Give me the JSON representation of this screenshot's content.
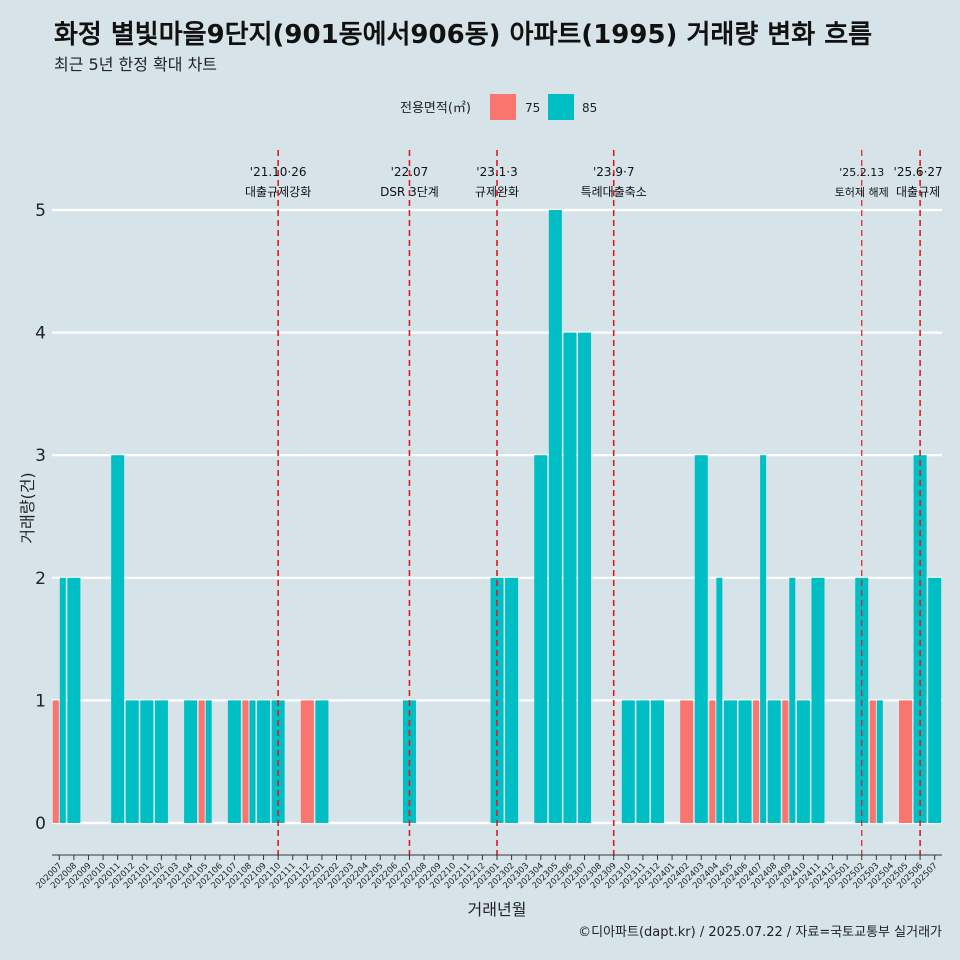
{
  "title": "화정 별빛마을9단지(901동에서906동) 아파트(1995) 거래량 변화 흐름",
  "subtitle": "최근 5년 한정 확대 차트",
  "caption": "©디아파트(dapt.kr) / 2025.07.22 / 자료=국토교통부 실거래가",
  "colors": {
    "background": "#d6e4ea",
    "series_75": "#f8766d",
    "series_85": "#00bfc4",
    "grid": "#ffffff",
    "event_line": "#e31a1c"
  },
  "chart_data": {
    "type": "bar",
    "stacked": "dodge",
    "xlabel": "거래년월",
    "ylabel": "거래량(건)",
    "ylim": [
      0,
      5
    ],
    "yticks": [
      "0",
      "1",
      "2",
      "3",
      "4",
      "5"
    ],
    "grid": true,
    "legend": {
      "title": "전용면적(㎡)",
      "position": "top",
      "entries": [
        "75",
        "85"
      ]
    },
    "categories": [
      "202007",
      "202008",
      "202009",
      "202010",
      "202011",
      "202012",
      "202101",
      "202102",
      "202103",
      "202104",
      "202105",
      "202106",
      "202107",
      "202108",
      "202109",
      "202110",
      "202111",
      "202112",
      "202201",
      "202202",
      "202203",
      "202204",
      "202205",
      "202206",
      "202207",
      "202208",
      "202209",
      "202210",
      "202211",
      "202212",
      "202301",
      "202302",
      "202303",
      "202304",
      "202305",
      "202306",
      "202307",
      "202308",
      "202309",
      "202310",
      "202311",
      "202312",
      "202401",
      "202402",
      "202403",
      "202404",
      "202405",
      "202406",
      "202407",
      "202408",
      "202409",
      "202410",
      "202411",
      "202412",
      "202501",
      "202502",
      "202503",
      "202504",
      "202505",
      "202506",
      "202507"
    ],
    "series": [
      {
        "name": "75",
        "values": [
          1,
          0,
          0,
          0,
          0,
          0,
          0,
          0,
          0,
          0,
          1,
          0,
          0,
          1,
          0,
          0,
          0,
          1,
          0,
          0,
          0,
          0,
          0,
          0,
          0,
          0,
          0,
          0,
          0,
          0,
          0,
          0,
          0,
          0,
          0,
          0,
          0,
          0,
          0,
          0,
          0,
          0,
          0,
          1,
          0,
          1,
          0,
          0,
          1,
          0,
          1,
          0,
          0,
          0,
          0,
          0,
          1,
          0,
          1,
          0,
          0
        ]
      },
      {
        "name": "85",
        "values": [
          2,
          2,
          0,
          0,
          3,
          1,
          1,
          1,
          0,
          1,
          1,
          0,
          1,
          1,
          1,
          1,
          0,
          0,
          1,
          0,
          0,
          0,
          0,
          0,
          1,
          0,
          0,
          0,
          0,
          0,
          2,
          2,
          0,
          3,
          5,
          4,
          4,
          0,
          0,
          1,
          1,
          1,
          0,
          0,
          3,
          2,
          1,
          1,
          3,
          1,
          2,
          1,
          2,
          0,
          0,
          2,
          1,
          0,
          0,
          3,
          2
        ]
      }
    ],
    "events": [
      {
        "at": "202110",
        "date": "'21.10·26",
        "label": "대출규제강화"
      },
      {
        "at": "202207",
        "date": "'22.07",
        "label": "DSR 3단계"
      },
      {
        "at": "202301",
        "date": "'23.1·3",
        "label": "규제완화"
      },
      {
        "at": "202309",
        "date": "'23.9·7",
        "label": "특례대출축소"
      },
      {
        "at": "202502",
        "date": "'25.2.13",
        "label": "토허제 해제"
      },
      {
        "at": "202506",
        "date": "'25.6·27",
        "label": "대출규제"
      }
    ]
  }
}
